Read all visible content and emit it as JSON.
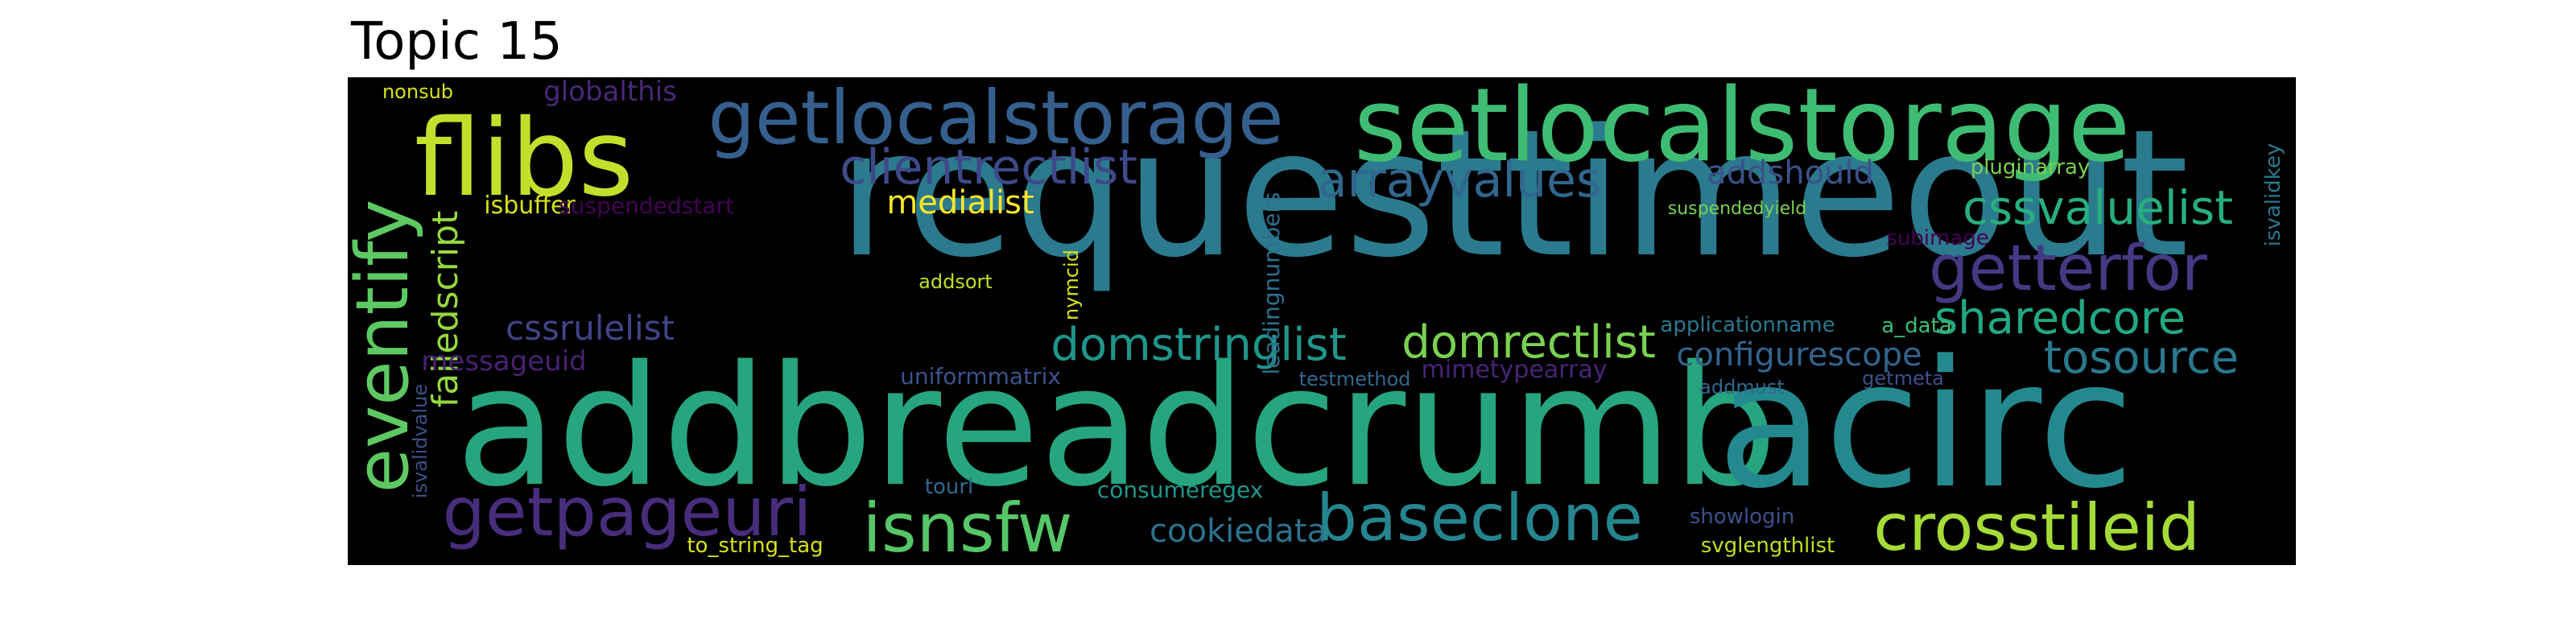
{
  "title": "Topic 15",
  "words": [
    {
      "text": "requesttimeout",
      "color": "#2b7a8e"
    },
    {
      "text": "addbreadcrumb",
      "color": "#27a57f"
    },
    {
      "text": "acirc",
      "color": "#23898e"
    },
    {
      "text": "setlocalstorage",
      "color": "#3fbc73"
    },
    {
      "text": "flibs",
      "color": "#c3df2c"
    },
    {
      "text": "getlocalstorage",
      "color": "#355f8d"
    },
    {
      "text": "eventify",
      "color": "#5ec962"
    },
    {
      "text": "getterfor",
      "color": "#443983"
    },
    {
      "text": "crosstileid",
      "color": "#a5db36"
    },
    {
      "text": "baseclone",
      "color": "#25858e"
    },
    {
      "text": "isnsfw",
      "color": "#56c667"
    },
    {
      "text": "getpageuri",
      "color": "#472d7b"
    },
    {
      "text": "clientrectlist",
      "color": "#3e4989"
    },
    {
      "text": "arrayvalues",
      "color": "#31668e"
    },
    {
      "text": "cssvaluelist",
      "color": "#29af7f"
    },
    {
      "text": "sharedcore",
      "color": "#22a884"
    },
    {
      "text": "tosource",
      "color": "#2a788e"
    },
    {
      "text": "domrectlist",
      "color": "#7ad151"
    },
    {
      "text": "domstringlist",
      "color": "#1f968b"
    },
    {
      "text": "failedscript",
      "color": "#95d840"
    },
    {
      "text": "cssrulelist",
      "color": "#414487"
    },
    {
      "text": "medialist",
      "color": "#fde725"
    },
    {
      "text": "addshould",
      "color": "#3b528b"
    },
    {
      "text": "configurescope",
      "color": "#33638d"
    },
    {
      "text": "cookiedata",
      "color": "#2c728e"
    },
    {
      "text": "globalthis",
      "color": "#482878"
    },
    {
      "text": "messageuid",
      "color": "#482173"
    },
    {
      "text": "uniformmatrix",
      "color": "#3b528b"
    },
    {
      "text": "mimetypearray",
      "color": "#482475"
    },
    {
      "text": "leadingnumbers",
      "color": "#2d708e"
    },
    {
      "text": "isbuffer",
      "color": "#d8e219"
    },
    {
      "text": "suspendedstart",
      "color": "#440154"
    },
    {
      "text": "isvalidkey",
      "color": "#2a788e"
    },
    {
      "text": "pluginarray",
      "color": "#7ad151"
    },
    {
      "text": "subimage",
      "color": "#440154"
    },
    {
      "text": "suspendedyield",
      "color": "#7ad151"
    },
    {
      "text": "applicationname",
      "color": "#2a788e"
    },
    {
      "text": "a_data",
      "color": "#3dbc74"
    },
    {
      "text": "showlogin",
      "color": "#3b528b"
    },
    {
      "text": "consumeregex",
      "color": "#1f968b"
    },
    {
      "text": "isvalidvalue",
      "color": "#3b528b"
    },
    {
      "text": "nonsub",
      "color": "#d8e219"
    },
    {
      "text": "addsort",
      "color": "#c2df23"
    },
    {
      "text": "nymcid",
      "color": "#d8e219"
    },
    {
      "text": "tourl",
      "color": "#31688e"
    },
    {
      "text": "testmethod",
      "color": "#31688e"
    },
    {
      "text": "addmust",
      "color": "#31688e"
    },
    {
      "text": "getmeta",
      "color": "#3b528b"
    },
    {
      "text": "svglengthlist",
      "color": "#bddf26"
    },
    {
      "text": "to_string_tag",
      "color": "#d8e219"
    }
  ]
}
